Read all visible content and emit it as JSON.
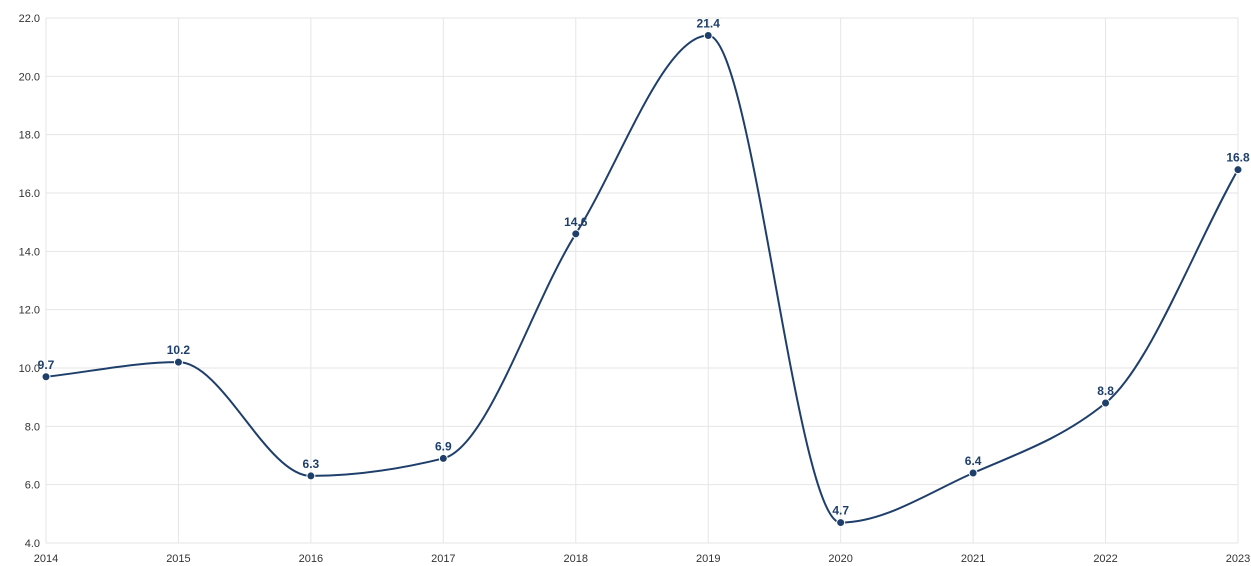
{
  "chart_data": {
    "type": "line",
    "title": "",
    "xlabel": "",
    "ylabel": "",
    "categories": [
      "2014",
      "2015",
      "2016",
      "2017",
      "2018",
      "2019",
      "2020",
      "2021",
      "2022",
      "2023"
    ],
    "series": [
      {
        "values": [
          9.7,
          10.2,
          6.3,
          6.9,
          14.6,
          21.4,
          4.7,
          6.4,
          8.8,
          16.8
        ],
        "labels": [
          "9.7",
          "10.2",
          "6.3",
          "6.9",
          "14.6",
          "21.4",
          "4.7",
          "6.4",
          "8.8",
          "16.8"
        ],
        "color": "#1f3f6b"
      }
    ],
    "ylim": [
      4.0,
      22.0
    ],
    "yticks": [
      "4.0",
      "6.0",
      "8.0",
      "10.0",
      "12.0",
      "14.0",
      "16.0",
      "18.0",
      "20.0",
      "22.0"
    ],
    "grid": true,
    "legend": "none",
    "smooth": true
  }
}
